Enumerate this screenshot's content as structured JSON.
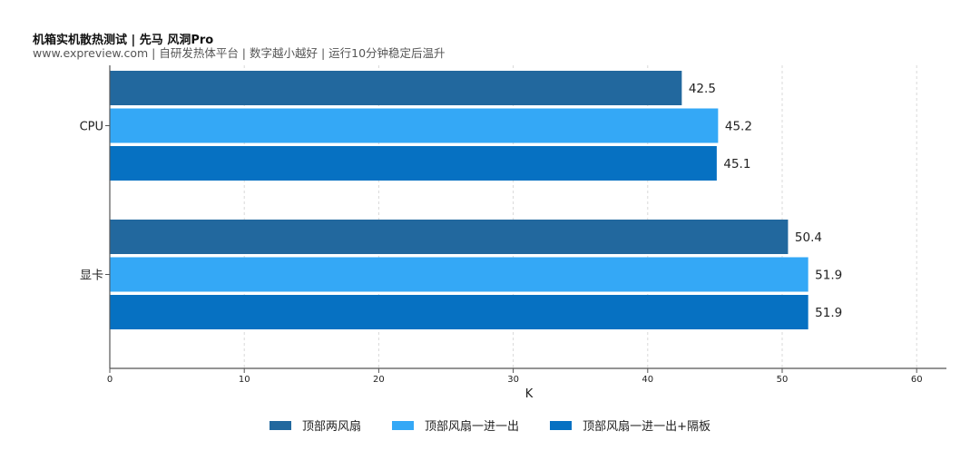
{
  "chart_data": {
    "type": "bar",
    "orientation": "horizontal",
    "title": "机箱实机散热测试 | 先马 风洞Pro",
    "subtitle": "www.expreview.com | 自研发热体平台 | 数字越小越好 | 运行10分钟稳定后温升",
    "categories": [
      "CPU",
      "显卡"
    ],
    "series": [
      {
        "name": "顶部两风扇",
        "color": "#22689e",
        "values": [
          42.5,
          50.4
        ]
      },
      {
        "name": "顶部风扇一进一出",
        "color": "#34a8f6",
        "values": [
          45.2,
          51.9
        ]
      },
      {
        "name": "顶部风扇一进一出+隔板",
        "color": "#0671c2",
        "values": [
          45.1,
          51.9
        ]
      }
    ],
    "xlabel": "K",
    "ylabel": "",
    "xlim": [
      0,
      62
    ],
    "xticks": [
      "0",
      "10",
      "20",
      "30",
      "40",
      "50",
      "60"
    ],
    "grid": "vertical dashed",
    "legend_position": "bottom-center"
  }
}
